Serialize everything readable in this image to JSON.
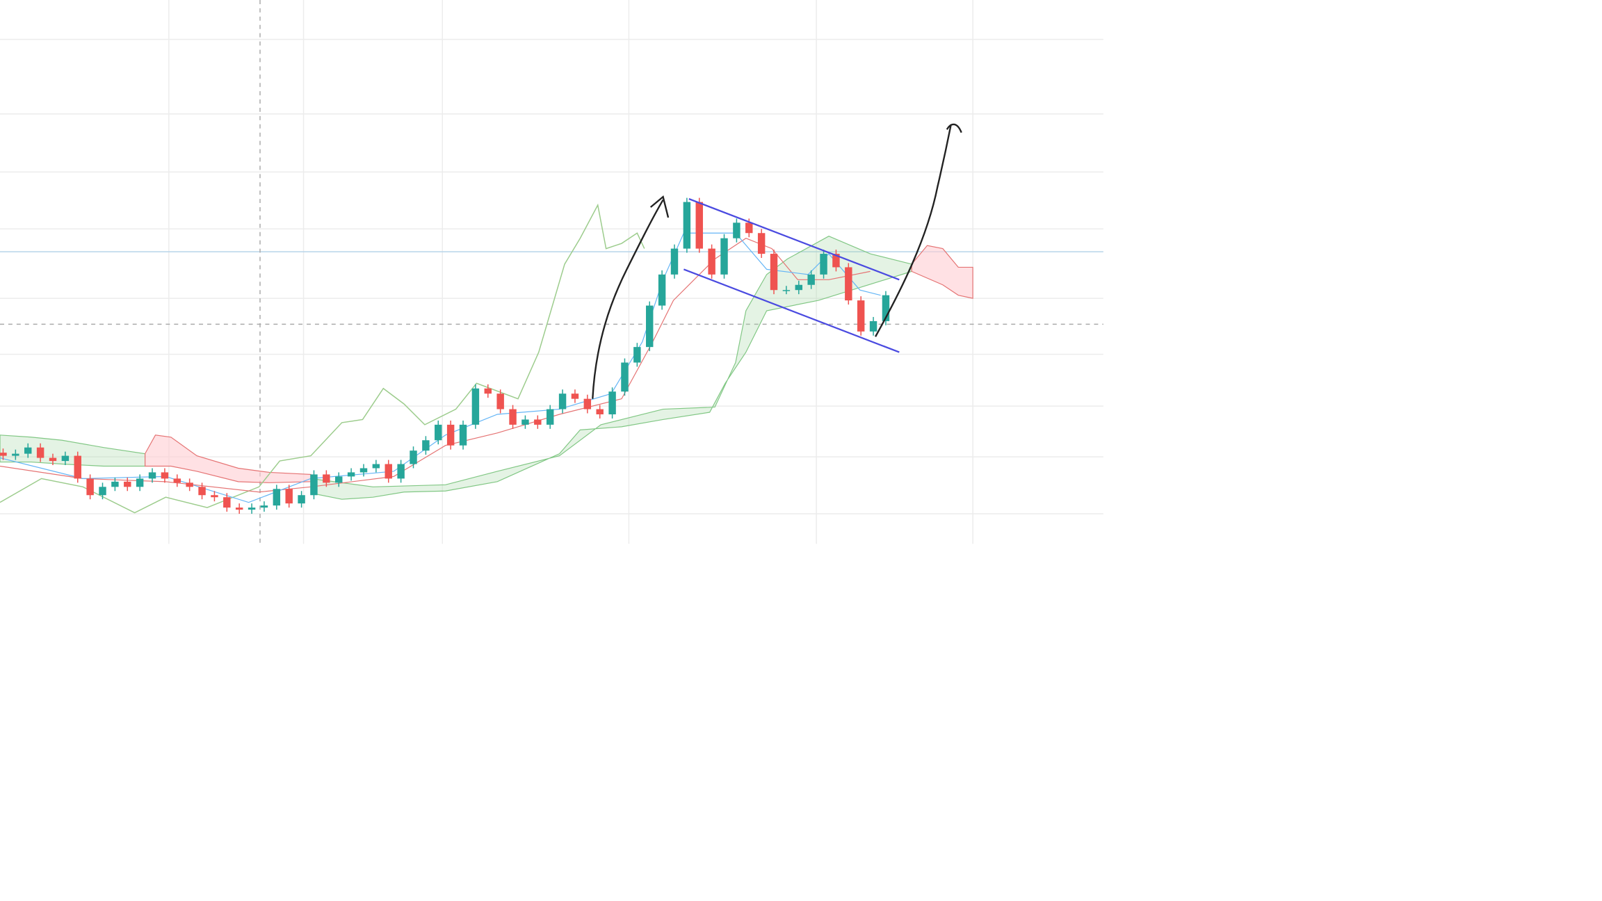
{
  "chart_data": {
    "type": "candlestick",
    "ylim": [
      0,
      525
    ],
    "up_color": "#26a69a",
    "down_color": "#ef5350",
    "candles": [
      [
        88,
        92,
        81,
        85
      ],
      [
        85,
        91,
        81,
        87
      ],
      [
        87,
        97,
        83,
        93
      ],
      [
        93,
        97,
        79,
        83
      ],
      [
        83,
        87,
        76,
        80
      ],
      [
        80,
        89,
        76,
        85
      ],
      [
        85,
        89,
        59,
        63
      ],
      [
        63,
        67,
        43,
        47
      ],
      [
        47,
        59,
        43,
        55
      ],
      [
        55,
        64,
        51,
        60
      ],
      [
        60,
        64,
        51,
        55
      ],
      [
        55,
        67,
        51,
        63
      ],
      [
        63,
        73,
        59,
        69
      ],
      [
        69,
        73,
        59,
        63
      ],
      [
        63,
        67,
        55,
        59
      ],
      [
        59,
        63,
        51,
        55
      ],
      [
        55,
        59,
        43,
        47
      ],
      [
        47,
        51,
        41,
        45
      ],
      [
        45,
        49,
        31,
        35
      ],
      [
        35,
        39,
        29,
        33
      ],
      [
        33,
        39,
        29,
        35
      ],
      [
        35,
        41,
        31,
        37
      ],
      [
        37,
        57,
        33,
        53
      ],
      [
        53,
        57,
        35,
        39
      ],
      [
        39,
        51,
        35,
        47
      ],
      [
        47,
        71,
        43,
        67
      ],
      [
        67,
        71,
        55,
        59
      ],
      [
        59,
        69,
        55,
        65
      ],
      [
        65,
        73,
        61,
        69
      ],
      [
        69,
        77,
        65,
        73
      ],
      [
        73,
        81,
        69,
        77
      ],
      [
        77,
        81,
        59,
        63
      ],
      [
        63,
        81,
        59,
        77
      ],
      [
        77,
        94,
        73,
        90
      ],
      [
        90,
        104,
        86,
        100
      ],
      [
        100,
        119,
        96,
        115
      ],
      [
        115,
        119,
        91,
        95
      ],
      [
        95,
        119,
        91,
        115
      ],
      [
        115,
        154,
        111,
        150
      ],
      [
        150,
        154,
        141,
        145
      ],
      [
        145,
        149,
        126,
        130
      ],
      [
        130,
        134,
        111,
        115
      ],
      [
        115,
        124,
        111,
        120
      ],
      [
        120,
        124,
        111,
        115
      ],
      [
        115,
        134,
        111,
        130
      ],
      [
        130,
        149,
        126,
        145
      ],
      [
        145,
        149,
        136,
        140
      ],
      [
        140,
        144,
        126,
        130
      ],
      [
        130,
        134,
        121,
        125
      ],
      [
        125,
        151,
        121,
        147
      ],
      [
        147,
        179,
        143,
        175
      ],
      [
        175,
        194,
        171,
        190
      ],
      [
        190,
        234,
        186,
        230
      ],
      [
        230,
        264,
        226,
        260
      ],
      [
        260,
        289,
        256,
        285
      ],
      [
        285,
        334,
        281,
        330
      ],
      [
        330,
        334,
        281,
        285
      ],
      [
        285,
        289,
        256,
        260
      ],
      [
        260,
        299,
        256,
        295
      ],
      [
        295,
        314,
        291,
        310
      ],
      [
        310,
        314,
        296,
        300
      ],
      [
        300,
        304,
        276,
        280
      ],
      [
        280,
        284,
        241,
        245
      ],
      [
        245,
        249,
        241,
        245
      ],
      [
        245,
        254,
        241,
        250
      ],
      [
        250,
        264,
        246,
        260
      ],
      [
        260,
        284,
        256,
        280
      ],
      [
        280,
        284,
        263,
        267
      ],
      [
        267,
        271,
        231,
        235
      ],
      [
        235,
        239,
        201,
        205
      ],
      [
        205,
        219,
        201,
        215
      ],
      [
        215,
        244,
        211,
        240
      ]
    ]
  }
}
